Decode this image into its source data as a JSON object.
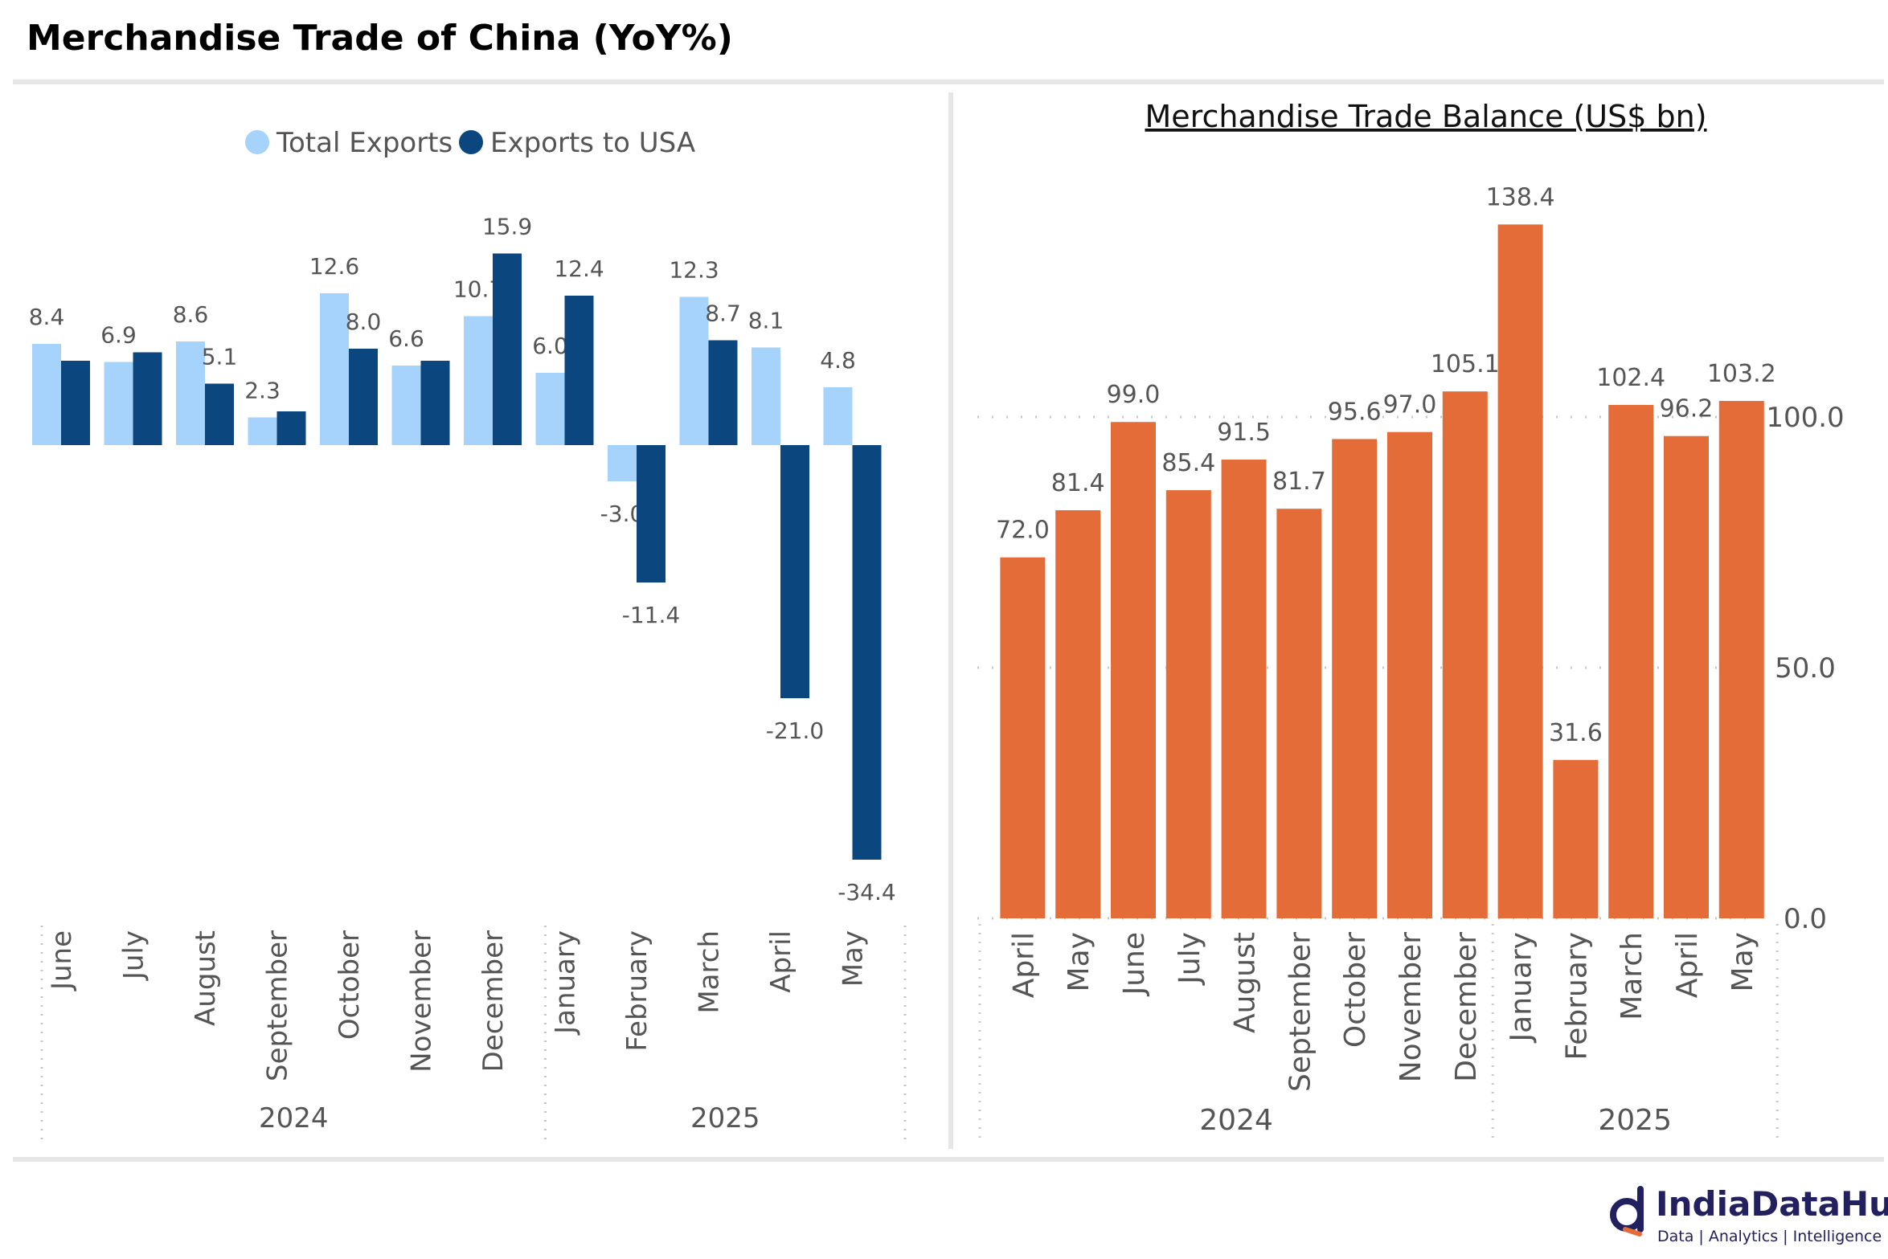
{
  "page": {
    "title": "Merchandise Trade of China (YoY%)"
  },
  "brand": {
    "name": "IndiaDataHub",
    "tagline": "Data | Analytics | Intelligence"
  },
  "chart_data": [
    {
      "type": "bar",
      "title": "",
      "legend_position": "top",
      "categories": [
        "June",
        "July",
        "August",
        "September",
        "October",
        "November",
        "December",
        "January",
        "February",
        "March",
        "April",
        "May"
      ],
      "groups": [
        {
          "label": "2024",
          "count": 7
        },
        {
          "label": "2025",
          "count": 5
        }
      ],
      "series": [
        {
          "name": "Total Exports",
          "color": "#a5d3fb",
          "values": [
            8.4,
            6.9,
            8.6,
            2.3,
            12.6,
            6.6,
            10.7,
            6.0,
            -3.0,
            12.3,
            8.1,
            4.8
          ],
          "labels": [
            "8.4",
            "6.9",
            "8.6",
            "2.3",
            "12.6",
            "6.6",
            "10.7",
            "6.0",
            "-3.0",
            "12.3",
            "8.1",
            "4.8"
          ]
        },
        {
          "name": "Exports to USA",
          "color": "#0b467e",
          "values": [
            7.0,
            7.7,
            5.1,
            2.8,
            8.0,
            7.0,
            15.9,
            12.4,
            -11.4,
            8.7,
            -21.0,
            -34.4
          ],
          "labels": [
            "",
            "",
            "5.1",
            "",
            "8.0",
            "",
            "15.9",
            "12.4",
            "-11.4",
            "8.7",
            "-21.0",
            "-34.4"
          ]
        }
      ],
      "ylim": [
        -36,
        17
      ],
      "grid": false
    },
    {
      "type": "bar",
      "title": "Merchandise Trade Balance (US$ bn)",
      "categories": [
        "April",
        "May",
        "June",
        "July",
        "August",
        "September",
        "October",
        "November",
        "December",
        "January",
        "February",
        "March",
        "April",
        "May"
      ],
      "groups": [
        {
          "label": "2024",
          "count": 9
        },
        {
          "label": "2025",
          "count": 5
        }
      ],
      "series": [
        {
          "name": "",
          "color": "#e46c38",
          "values": [
            72.0,
            81.4,
            99.0,
            85.4,
            91.5,
            81.7,
            95.6,
            97.0,
            105.1,
            138.4,
            31.6,
            102.4,
            96.2,
            103.2
          ],
          "labels": [
            "72.0",
            "81.4",
            "99.0",
            "85.4",
            "91.5",
            "81.7",
            "95.6",
            "97.0",
            "105.1",
            "138.4",
            "31.6",
            "102.4",
            "96.2",
            "103.2"
          ]
        }
      ],
      "yticks": [
        "0.0",
        "50.0",
        "100.0"
      ],
      "ylim": [
        0,
        145
      ],
      "grid": true,
      "y_axis_side": "right"
    }
  ]
}
